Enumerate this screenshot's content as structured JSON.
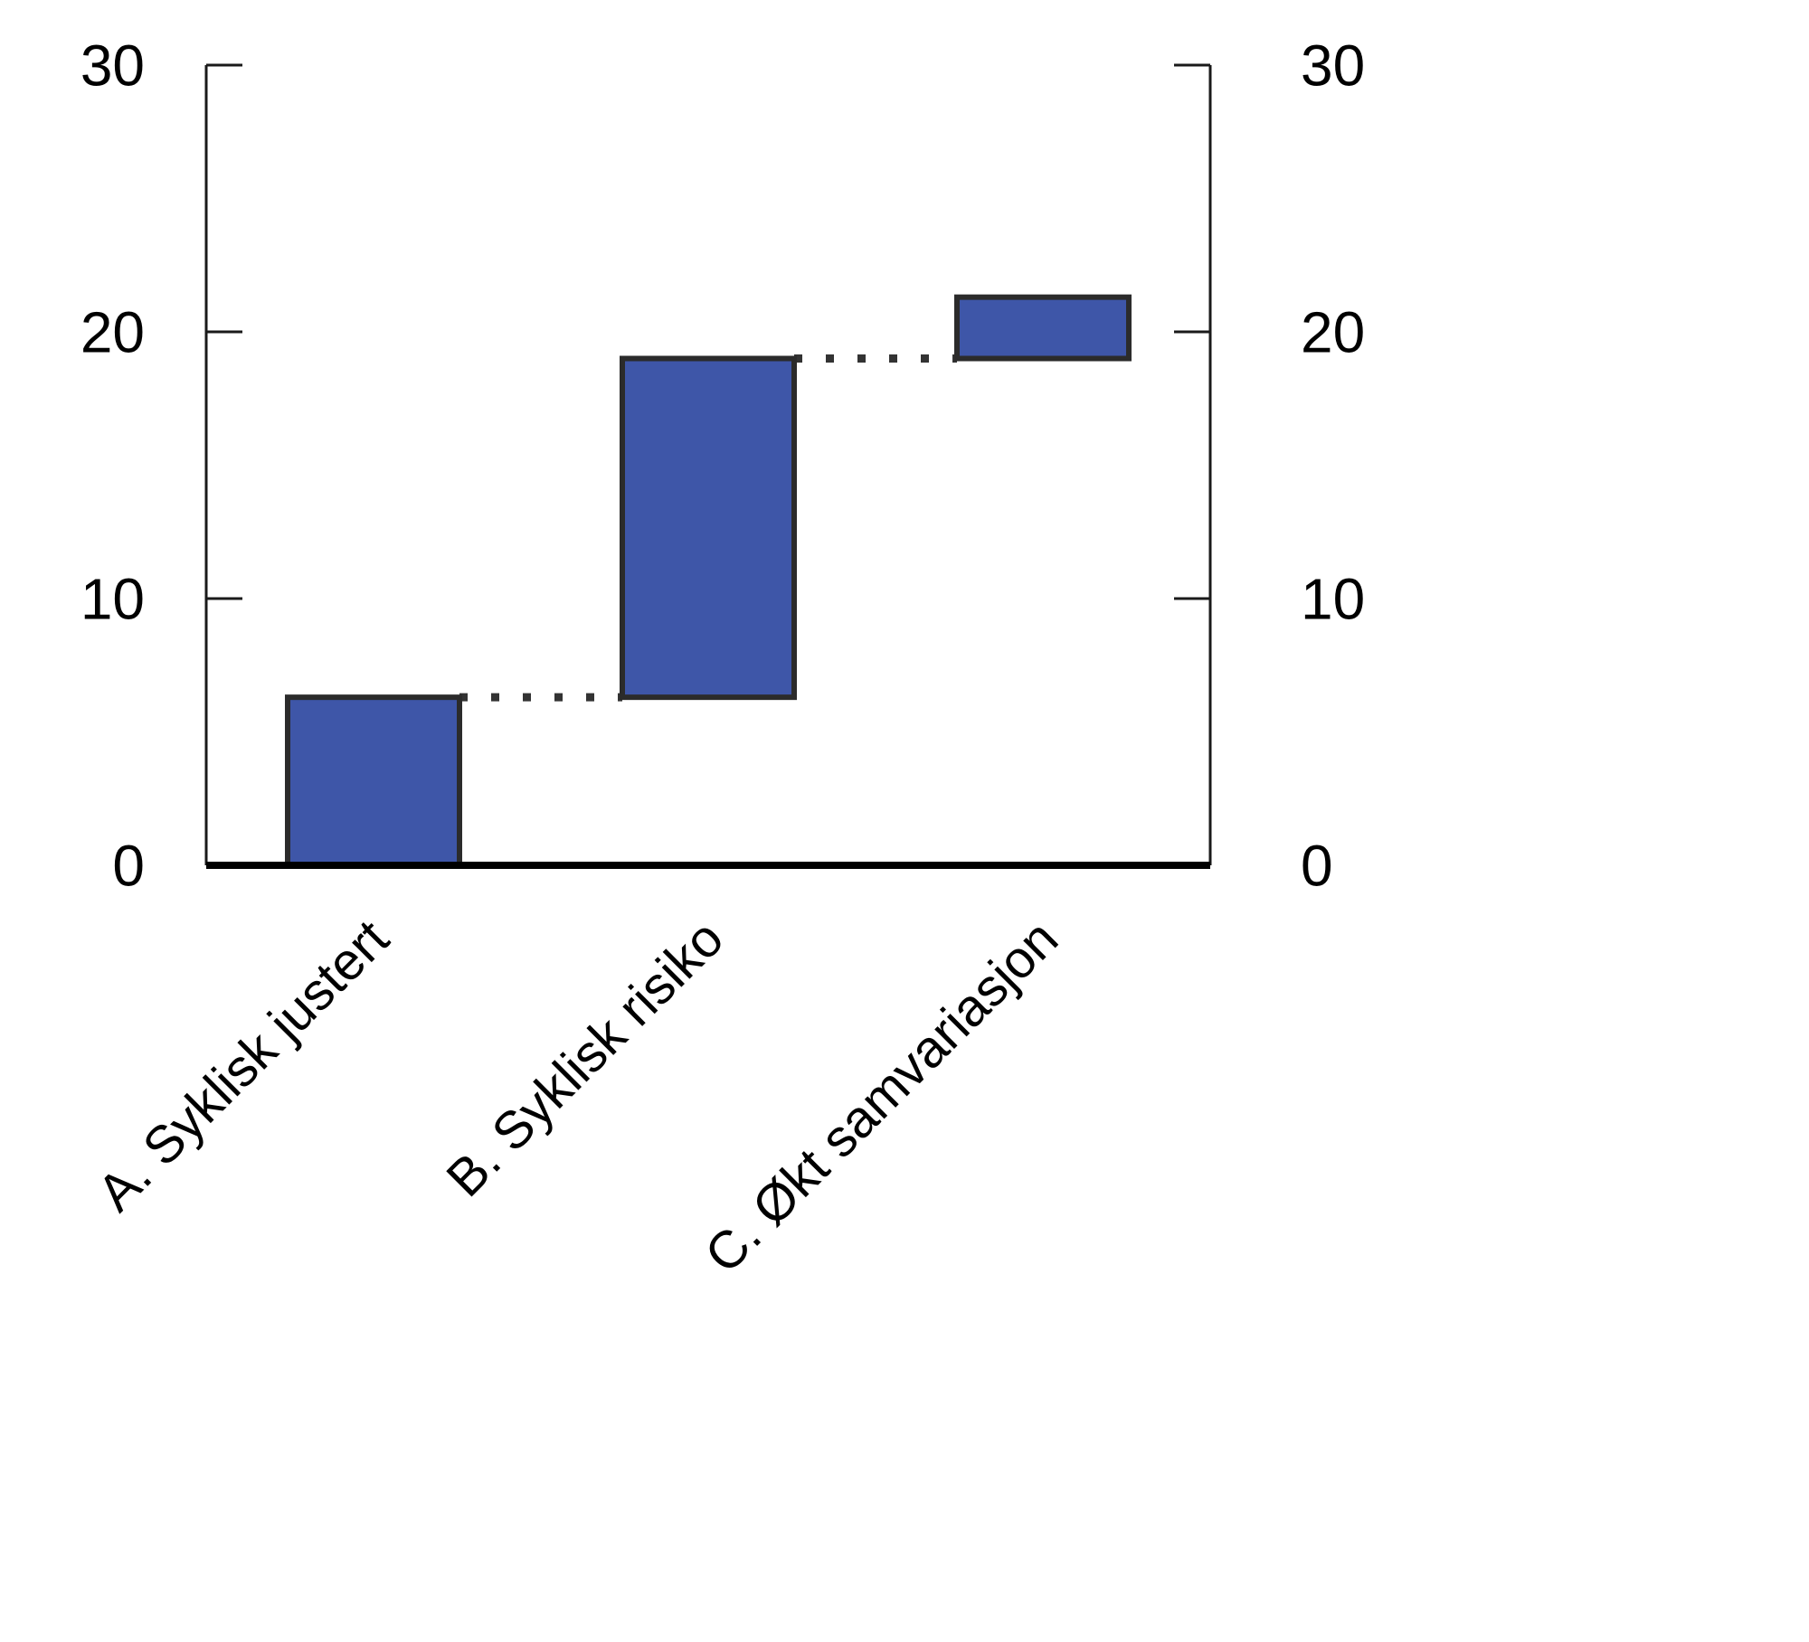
{
  "chart_data": {
    "type": "bar",
    "subtype": "waterfall",
    "title": "",
    "xlabel": "",
    "ylabel": "",
    "categories": [
      "A. Syklisk justert",
      "B. Syklisk risiko",
      "C. Økt samvariasjon"
    ],
    "segments": [
      {
        "label": "A. Syklisk justert",
        "start": 0,
        "end": 6.3
      },
      {
        "label": "B. Syklisk risiko",
        "start": 6.3,
        "end": 19
      },
      {
        "label": "C. Økt samvariasjon",
        "start": 19,
        "end": 21.3
      }
    ],
    "values_increment": [
      6.3,
      12.7,
      2.3
    ],
    "cumulative": [
      6.3,
      19,
      21.3
    ],
    "ylim": [
      0,
      30
    ],
    "yticks": [
      0,
      10,
      20,
      30
    ],
    "yaxis_left": true,
    "yaxis_right": true,
    "grid": false,
    "legend": null,
    "connector_style": "dotted",
    "colors": {
      "bar_fill": "#3E56A8",
      "bar_border": "#2B2B2B",
      "connector": "#333333",
      "axis": "#1A1A1A",
      "baseline": "#000000",
      "text": "#000000",
      "background": "#FFFFFF"
    }
  }
}
